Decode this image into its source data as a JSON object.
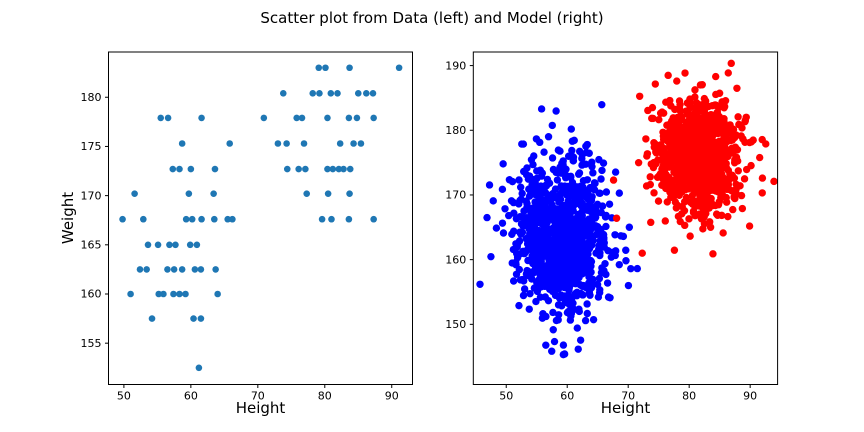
{
  "title": "Scatter plot from Data (left) and Model (right)",
  "colors": {
    "data_marker": "#1f77b4",
    "model_cluster_blue": "#0000ff",
    "model_cluster_red": "#ff0000",
    "axis": "#000000"
  },
  "chart_data": [
    {
      "type": "scatter",
      "name": "data-plot",
      "xlabel": "Height",
      "ylabel": "Weight",
      "xlim": [
        47.7,
        93.1
      ],
      "ylim": [
        150.8,
        184.6
      ],
      "xticks": [
        50,
        60,
        70,
        80,
        90
      ],
      "yticks": [
        155,
        160,
        165,
        170,
        175,
        180
      ],
      "grid": false,
      "legend": "none",
      "marker_color": "#1f77b4",
      "marker_radius": 3.3,
      "points": [
        [
          79.1,
          183.0
        ],
        [
          80.1,
          183.0
        ],
        [
          83.7,
          183.0
        ],
        [
          91.1,
          183.0
        ],
        [
          73.8,
          180.4
        ],
        [
          78.2,
          180.4
        ],
        [
          79.2,
          180.4
        ],
        [
          80.9,
          180.4
        ],
        [
          81.9,
          180.4
        ],
        [
          85.0,
          180.4
        ],
        [
          86.2,
          180.4
        ],
        [
          87.2,
          180.4
        ],
        [
          55.5,
          177.9
        ],
        [
          56.6,
          177.9
        ],
        [
          61.6,
          177.9
        ],
        [
          70.9,
          177.9
        ],
        [
          75.8,
          177.9
        ],
        [
          76.6,
          177.9
        ],
        [
          80.4,
          177.9
        ],
        [
          83.6,
          177.9
        ],
        [
          84.8,
          177.9
        ],
        [
          87.3,
          177.9
        ],
        [
          58.7,
          175.3
        ],
        [
          65.8,
          175.3
        ],
        [
          73.0,
          175.3
        ],
        [
          74.3,
          175.3
        ],
        [
          76.9,
          175.3
        ],
        [
          82.3,
          175.3
        ],
        [
          84.3,
          175.3
        ],
        [
          85.4,
          175.3
        ],
        [
          57.3,
          172.7
        ],
        [
          58.3,
          172.7
        ],
        [
          60.0,
          172.7
        ],
        [
          63.6,
          172.7
        ],
        [
          74.4,
          172.7
        ],
        [
          76.1,
          172.7
        ],
        [
          77.1,
          172.7
        ],
        [
          80.4,
          172.7
        ],
        [
          81.2,
          172.7
        ],
        [
          82.1,
          172.7
        ],
        [
          82.8,
          172.7
        ],
        [
          83.8,
          172.7
        ],
        [
          51.6,
          170.2
        ],
        [
          59.7,
          170.2
        ],
        [
          63.4,
          170.2
        ],
        [
          77.3,
          170.2
        ],
        [
          80.5,
          170.2
        ],
        [
          83.7,
          170.2
        ],
        [
          49.8,
          167.6
        ],
        [
          52.9,
          167.6
        ],
        [
          59.3,
          167.6
        ],
        [
          60.2,
          167.6
        ],
        [
          61.6,
          167.6
        ],
        [
          63.5,
          167.6
        ],
        [
          65.5,
          167.6
        ],
        [
          66.2,
          167.6
        ],
        [
          79.6,
          167.6
        ],
        [
          81.0,
          167.6
        ],
        [
          83.6,
          167.6
        ],
        [
          87.3,
          167.6
        ],
        [
          53.6,
          165.0
        ],
        [
          55.1,
          165.0
        ],
        [
          56.8,
          165.0
        ],
        [
          57.7,
          165.0
        ],
        [
          59.9,
          165.0
        ],
        [
          60.9,
          165.0
        ],
        [
          52.4,
          162.5
        ],
        [
          53.4,
          162.5
        ],
        [
          56.5,
          162.5
        ],
        [
          57.5,
          162.5
        ],
        [
          58.7,
          162.5
        ],
        [
          60.6,
          162.5
        ],
        [
          61.5,
          162.5
        ],
        [
          63.7,
          162.5
        ],
        [
          51.0,
          160.0
        ],
        [
          55.2,
          160.0
        ],
        [
          55.9,
          160.0
        ],
        [
          57.4,
          160.0
        ],
        [
          58.3,
          160.0
        ],
        [
          59.2,
          160.0
        ],
        [
          64.0,
          160.0
        ],
        [
          54.2,
          157.5
        ],
        [
          60.4,
          157.5
        ],
        [
          61.5,
          157.5
        ],
        [
          61.2,
          152.5
        ]
      ]
    },
    {
      "type": "scatter",
      "name": "model-plot",
      "xlabel": "Height",
      "ylabel": "",
      "xlim": [
        44.6,
        94.5
      ],
      "ylim": [
        140.7,
        192.1
      ],
      "xticks": [
        50,
        60,
        70,
        80,
        90
      ],
      "yticks": [
        150,
        160,
        170,
        180,
        190
      ],
      "grid": false,
      "legend": "none",
      "marker_radius": 3.7,
      "clusters": [
        {
          "name": "model-cluster-blue",
          "color": "#0000ff",
          "n": 1000,
          "mean": [
            59.0,
            164.0
          ],
          "std": [
            3.7,
            5.9
          ],
          "seed": 7
        },
        {
          "name": "model-cluster-red",
          "color": "#ff0000",
          "n": 1000,
          "mean": [
            81.5,
            176.0
          ],
          "std": [
            3.4,
            4.4
          ],
          "seed": 21
        }
      ],
      "extra_points": [
        {
          "name": "model-red-outliers",
          "color": "#ff0000",
          "points": [
            [
              67.6,
              172.3
            ],
            [
              68.1,
              166.4
            ],
            [
              72.3,
              161.0
            ]
          ]
        }
      ]
    }
  ]
}
